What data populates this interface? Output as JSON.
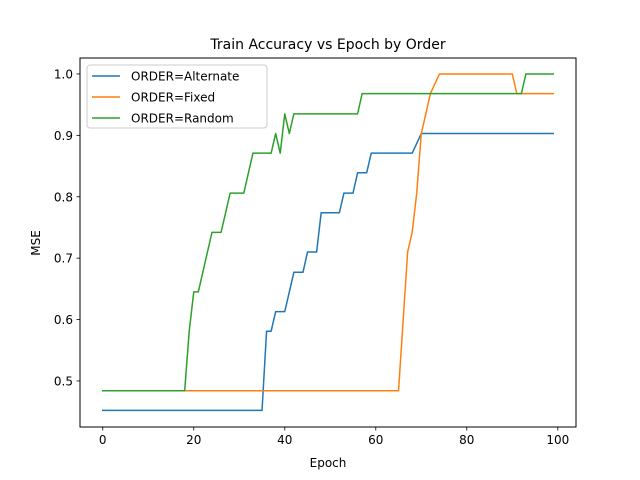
{
  "chart_data": {
    "type": "line",
    "title": "Train Accuracy vs Epoch by Order",
    "xlabel": "Epoch",
    "ylabel": "MSE",
    "xlim": [
      -5,
      104
    ],
    "ylim": [
      0.425,
      1.026
    ],
    "xticks": [
      0,
      20,
      40,
      60,
      80,
      100
    ],
    "yticks": [
      0.5,
      0.6,
      0.7,
      0.8,
      0.9,
      1.0
    ],
    "ytick_labels": [
      "0.5",
      "0.6",
      "0.7",
      "0.8",
      "0.9",
      "1.0"
    ],
    "grid": false,
    "legend_position": "top-left",
    "series": [
      {
        "name": "ORDER=Alternate",
        "color": "#1f77b4",
        "points": [
          [
            0,
            0.452
          ],
          [
            35,
            0.452
          ],
          [
            36,
            0.581
          ],
          [
            37,
            0.581
          ],
          [
            38,
            0.613
          ],
          [
            40,
            0.613
          ],
          [
            42,
            0.677
          ],
          [
            44,
            0.677
          ],
          [
            45,
            0.71
          ],
          [
            47,
            0.71
          ],
          [
            48,
            0.774
          ],
          [
            52,
            0.774
          ],
          [
            53,
            0.806
          ],
          [
            55,
            0.806
          ],
          [
            56,
            0.839
          ],
          [
            58,
            0.839
          ],
          [
            59,
            0.871
          ],
          [
            68,
            0.871
          ],
          [
            70,
            0.903
          ],
          [
            99,
            0.903
          ]
        ]
      },
      {
        "name": "ORDER=Fixed",
        "color": "#ff7f0e",
        "points": [
          [
            0,
            0.484
          ],
          [
            65,
            0.484
          ],
          [
            67,
            0.71
          ],
          [
            68,
            0.742
          ],
          [
            69,
            0.806
          ],
          [
            70,
            0.903
          ],
          [
            71,
            0.935
          ],
          [
            72,
            0.968
          ],
          [
            74,
            1.0
          ],
          [
            90,
            1.0
          ],
          [
            91,
            0.968
          ],
          [
            99,
            0.968
          ]
        ]
      },
      {
        "name": "ORDER=Random",
        "color": "#2ca02c",
        "points": [
          [
            0,
            0.484
          ],
          [
            18,
            0.484
          ],
          [
            19,
            0.581
          ],
          [
            20,
            0.645
          ],
          [
            21,
            0.645
          ],
          [
            24,
            0.742
          ],
          [
            26,
            0.742
          ],
          [
            28,
            0.806
          ],
          [
            31,
            0.806
          ],
          [
            33,
            0.871
          ],
          [
            37,
            0.871
          ],
          [
            38,
            0.903
          ],
          [
            39,
            0.871
          ],
          [
            40,
            0.935
          ],
          [
            41,
            0.903
          ],
          [
            42,
            0.935
          ],
          [
            56,
            0.935
          ],
          [
            57,
            0.968
          ],
          [
            91,
            0.968
          ],
          [
            92,
            0.968
          ],
          [
            93,
            1.0
          ],
          [
            99,
            1.0
          ]
        ]
      }
    ]
  }
}
